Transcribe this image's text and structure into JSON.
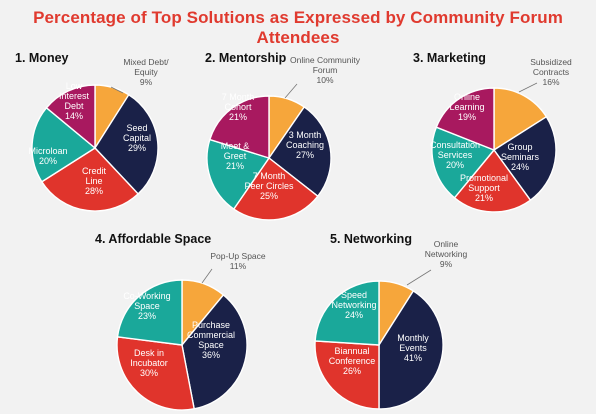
{
  "title": "Percentage of Top Solutions as Expressed by Community Forum Attendees",
  "colors": {
    "orange": "#f6a63b",
    "navy": "#1a2148",
    "red": "#e0342c",
    "teal": "#1aa89a",
    "magenta": "#a8195f"
  },
  "chart_data": [
    {
      "type": "pie",
      "title": "1. Money",
      "slices": [
        {
          "label": "Mixed Debt/\nEquity",
          "value": 9,
          "pct": "9%",
          "color": "#f6a63b",
          "outside": true
        },
        {
          "label": "Seed\nCapital",
          "value": 29,
          "pct": "29%",
          "color": "#1a2148"
        },
        {
          "label": "Credit\nLine",
          "value": 28,
          "pct": "28%",
          "color": "#e0342c"
        },
        {
          "label": "Microloan",
          "value": 20,
          "pct": "20%",
          "color": "#1aa89a"
        },
        {
          "label": "Low\nInterest\nDebt",
          "value": 14,
          "pct": "14%",
          "color": "#a8195f"
        }
      ]
    },
    {
      "type": "pie",
      "title": "2. Mentorship",
      "slices": [
        {
          "label": "Online Community\nForum",
          "value": 10,
          "pct": "10%",
          "color": "#f6a63b",
          "outside": true
        },
        {
          "label": "3 Month\nCoaching",
          "value": 27,
          "pct": "27%",
          "color": "#1a2148"
        },
        {
          "label": "7 Month\nPeer Circles",
          "value": 25,
          "pct": "25%",
          "color": "#e0342c"
        },
        {
          "label": "Meet &\nGreet",
          "value": 21,
          "pct": "21%",
          "color": "#1aa89a"
        },
        {
          "label": "7 Month\nCohort",
          "value": 21,
          "pct": "21%",
          "color": "#a8195f"
        }
      ]
    },
    {
      "type": "pie",
      "title": "3. Marketing",
      "slices": [
        {
          "label": "Subsidized\nContracts",
          "value": 16,
          "pct": "16%",
          "color": "#f6a63b",
          "outside": true
        },
        {
          "label": "Group\nSeminars",
          "value": 24,
          "pct": "24%",
          "color": "#1a2148"
        },
        {
          "label": "Promotional\nSupport",
          "value": 21,
          "pct": "21%",
          "color": "#e0342c"
        },
        {
          "label": "Consultation\nServices",
          "value": 20,
          "pct": "20%",
          "color": "#1aa89a"
        },
        {
          "label": "Online\nLearning",
          "value": 19,
          "pct": "19%",
          "color": "#a8195f"
        }
      ]
    },
    {
      "type": "pie",
      "title": "4. Affordable Space",
      "slices": [
        {
          "label": "Pop-Up Space",
          "value": 11,
          "pct": "11%",
          "color": "#f6a63b",
          "outside": true
        },
        {
          "label": "Purchase\nCommercial\nSpace",
          "value": 36,
          "pct": "36%",
          "color": "#1a2148"
        },
        {
          "label": "Desk in\nIncubator",
          "value": 30,
          "pct": "30%",
          "color": "#e0342c"
        },
        {
          "label": "Co-Working\nSpace",
          "value": 23,
          "pct": "23%",
          "color": "#1aa89a"
        }
      ]
    },
    {
      "type": "pie",
      "title": "5. Networking",
      "slices": [
        {
          "label": "Online\nNetworking",
          "value": 9,
          "pct": "9%",
          "color": "#f6a63b",
          "outside": true
        },
        {
          "label": "Monthly\nEvents",
          "value": 41,
          "pct": "41%",
          "color": "#1a2148"
        },
        {
          "label": "Biannual\nConference",
          "value": 26,
          "pct": "26%",
          "color": "#e0342c"
        },
        {
          "label": "Speed\nNetworking",
          "value": 24,
          "pct": "24%",
          "color": "#1aa89a"
        }
      ]
    }
  ]
}
